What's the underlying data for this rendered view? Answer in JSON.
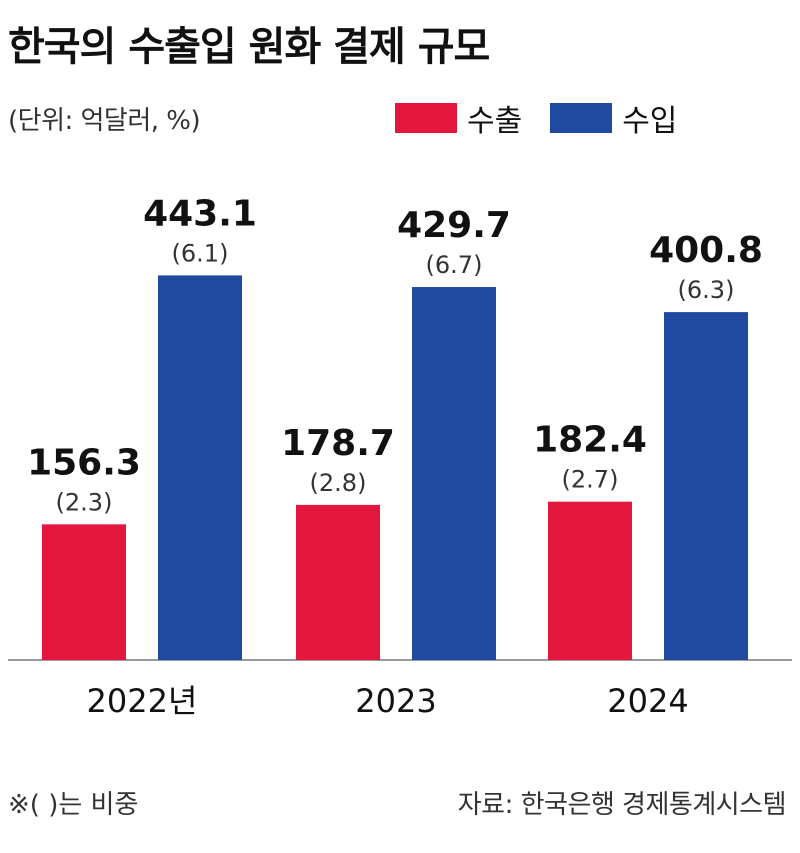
{
  "title": "한국의 수출입 원화 결제 규모",
  "unit_note": "(단위: 억달러, %)",
  "footnote": "※( )는 비중",
  "source": "자료: 한국은행 경제통계시스템",
  "colors": {
    "export": "#e4173f",
    "import": "#1f4aa0",
    "axis": "#9a9a9a"
  },
  "chart_data": {
    "type": "bar",
    "categories": [
      "2022년",
      "2023",
      "2024"
    ],
    "series": [
      {
        "name": "수출",
        "values": [
          156.3,
          178.7,
          182.4
        ],
        "value_labels": [
          "156.3",
          "178.7",
          "182.4"
        ],
        "share_labels": [
          "(2.3)",
          "(2.8)",
          "(2.7)"
        ]
      },
      {
        "name": "수입",
        "values": [
          443.1,
          429.7,
          400.8
        ],
        "value_labels": [
          "443.1",
          "429.7",
          "400.8"
        ],
        "share_labels": [
          "(6.1)",
          "(6.7)",
          "(6.3)"
        ]
      }
    ],
    "ylim": [
      0,
      500
    ],
    "legend_position": "top-right",
    "grid": false
  }
}
